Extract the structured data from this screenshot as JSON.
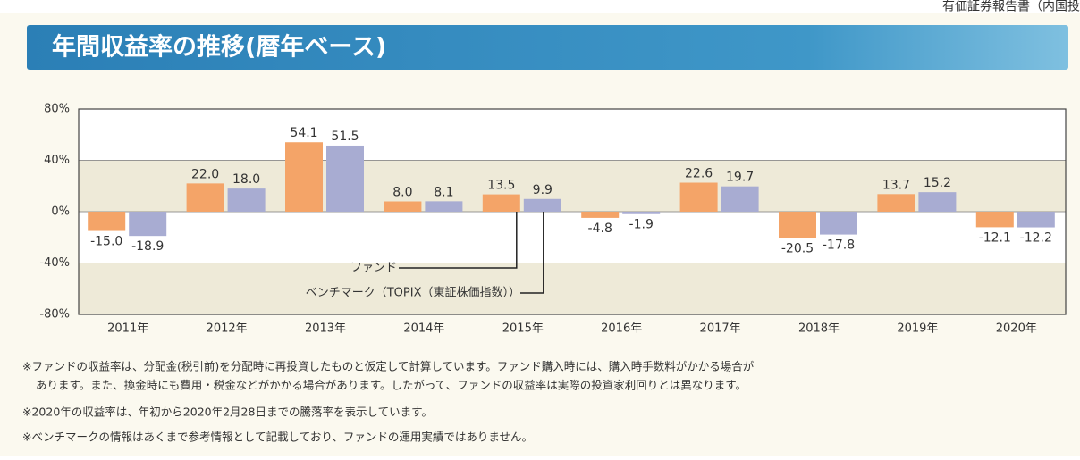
{
  "corner_text": "有価証券報告書（内国投",
  "chart_data": {
    "type": "bar",
    "title": "年間収益率の推移(暦年ベース)",
    "categories": [
      "2011年",
      "2012年",
      "2013年",
      "2014年",
      "2015年",
      "2016年",
      "2017年",
      "2018年",
      "2019年",
      "2020年"
    ],
    "series": [
      {
        "name": "ファンド",
        "color": "#f4a468",
        "values": [
          -15.0,
          22.0,
          54.1,
          8.0,
          13.5,
          -4.8,
          22.6,
          -20.5,
          13.7,
          -12.1
        ],
        "value_labels": [
          "-15.0",
          "22.0",
          "54.1",
          "8.0",
          "13.5",
          "-4.8",
          "22.6",
          "-20.5",
          "13.7",
          "-12.1"
        ]
      },
      {
        "name": "ベンチマーク（TOPIX（東証株価指数））",
        "color": "#a8acd2",
        "values": [
          -18.9,
          18.0,
          51.5,
          8.1,
          9.9,
          -1.9,
          19.7,
          -17.8,
          15.2,
          -12.2
        ],
        "value_labels": [
          "-18.9",
          "18.0",
          "51.5",
          "8.1",
          "9.9",
          "-1.9",
          "19.7",
          "-17.8",
          "15.2",
          "-12.2"
        ]
      }
    ],
    "ylim": [
      -80,
      80
    ],
    "yticks": [
      {
        "value": 80,
        "label": "80%"
      },
      {
        "value": 40,
        "label": "40%"
      },
      {
        "value": 0,
        "label": "0%"
      },
      {
        "value": -40,
        "label": "-40%"
      },
      {
        "value": -80,
        "label": "-80%"
      }
    ],
    "grid": true
  },
  "notes": [
    "※ファンドの収益率は、分配金(税引前)を分配時に再投資したものと仮定して計算しています。ファンド購入時には、購入時手数料がかかる場合が",
    "あります。また、換金時にも費用・税金などがかかる場合があります。したがって、ファンドの収益率は実際の投資家利回りとは異なります。",
    "※2020年の収益率は、年初から2020年2月28日までの騰落率を表示しています。",
    "※ベンチマークの情報はあくまで参考情報として記載しており、ファンドの運用実績ではありません。"
  ]
}
